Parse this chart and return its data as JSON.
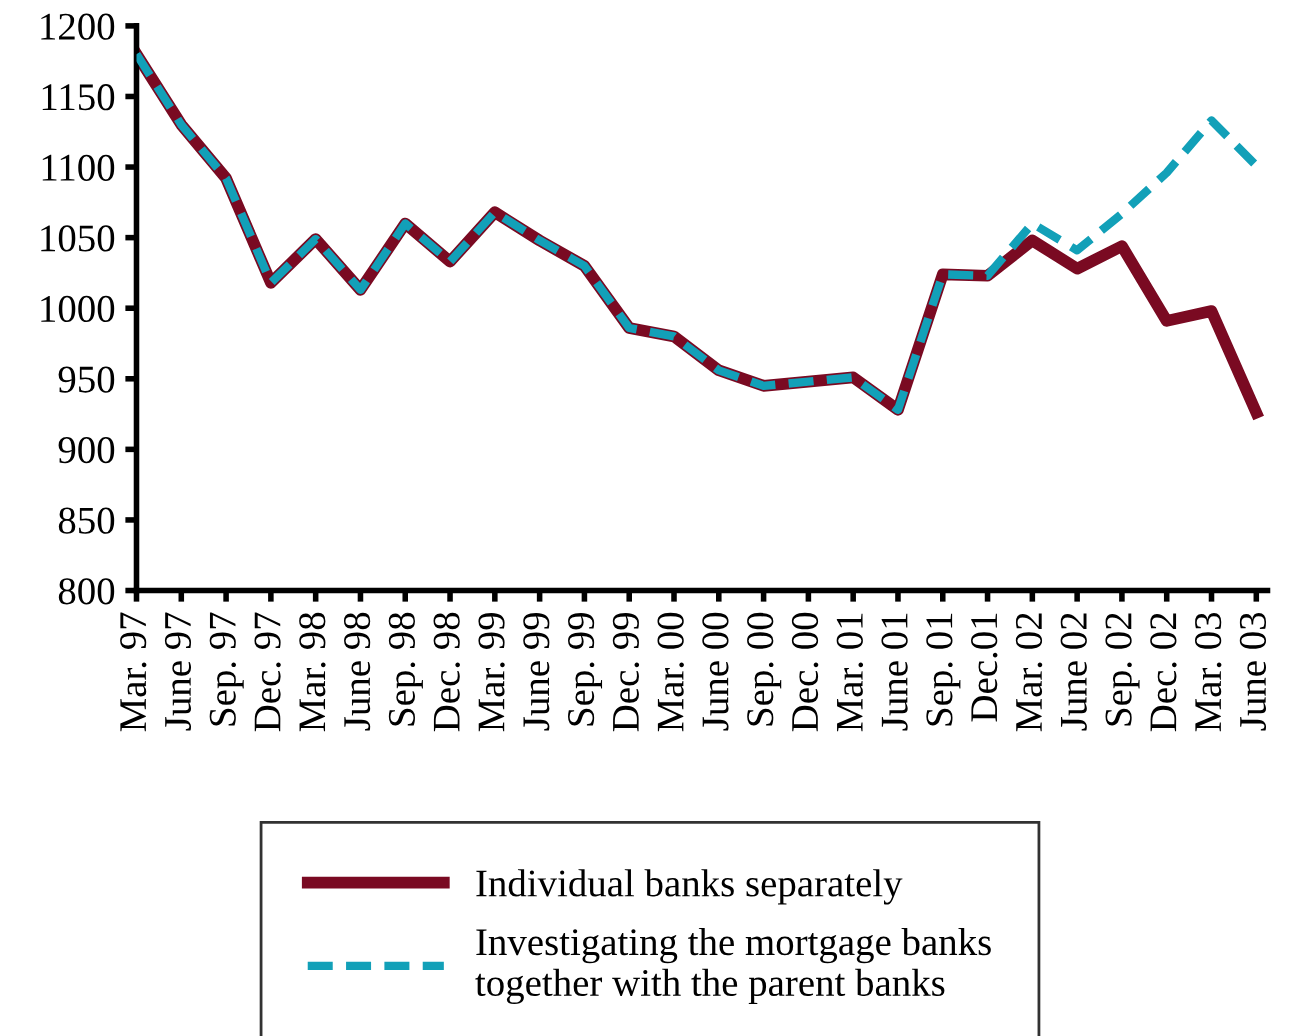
{
  "chart_data": {
    "type": "line",
    "categories": [
      "Mar. 97",
      "June 97",
      "Sep. 97",
      "Dec. 97",
      "Mar. 98",
      "June 98",
      "Sep. 98",
      "Dec. 98",
      "Mar. 99",
      "June 99",
      "Sep. 99",
      "Dec. 99",
      "Mar. 00",
      "June 00",
      "Sep. 00",
      "Dec. 00",
      "Mar. 01",
      "June 01",
      "Sep. 01",
      "Dec.01",
      "Mar. 02",
      "June 02",
      "Sep. 02",
      "Dec. 02",
      "Mar. 03",
      "June 03"
    ],
    "series": [
      {
        "name": "Individual banks separately",
        "color": "#7a0a22",
        "line_style": "solid",
        "values": [
          1180,
          1130,
          1092,
          1018,
          1049,
          1013,
          1060,
          1033,
          1068,
          1048,
          1030,
          986,
          980,
          956,
          945,
          948,
          951,
          928,
          1024,
          1023,
          1048,
          1028,
          1044,
          991,
          998,
          926
        ]
      },
      {
        "name": "Investigating the mortgage banks\ntogether with the parent banks",
        "color": "#12a0b8",
        "line_style": "dashed",
        "values": [
          1180,
          1130,
          1092,
          1018,
          1049,
          1013,
          1060,
          1033,
          1068,
          1048,
          1030,
          986,
          980,
          956,
          945,
          948,
          951,
          928,
          1024,
          1023,
          1060,
          1041,
          1067,
          1096,
          1133,
          1101
        ]
      }
    ],
    "ylim": [
      800,
      1200
    ],
    "yticks": [
      800,
      850,
      900,
      950,
      1000,
      1050,
      1100,
      1150,
      1200
    ],
    "grid": false,
    "legend": "bottom",
    "marker": "none"
  }
}
